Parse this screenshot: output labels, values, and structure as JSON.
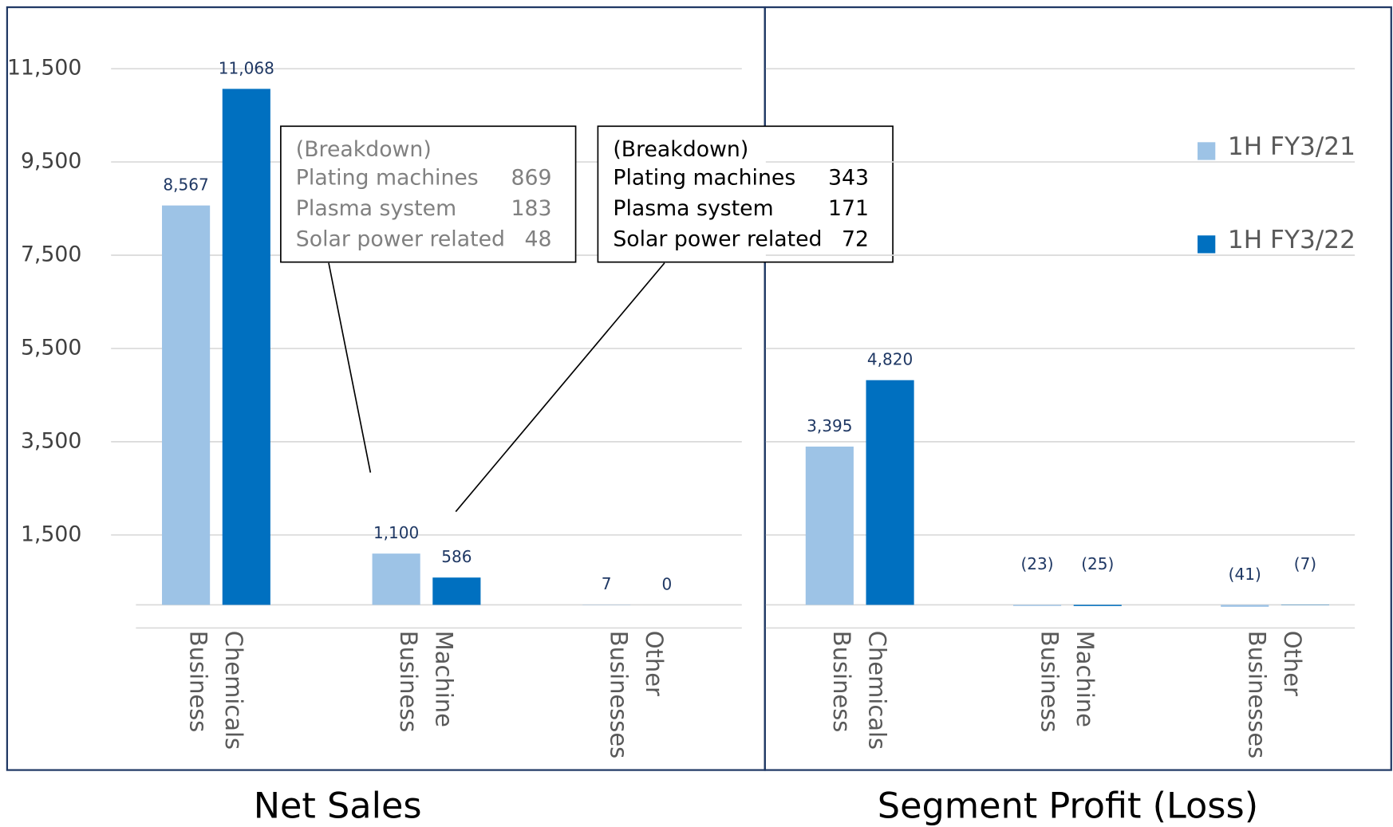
{
  "chart_data": [
    {
      "type": "bar",
      "title": "Net Sales",
      "categories": [
        "Chemicals Business",
        "Machine Business",
        "Other Businesses"
      ],
      "series": [
        {
          "name": "1H FY3/21",
          "color": "#9dc3e6",
          "values": [
            8567,
            1100,
            7
          ],
          "value_labels": [
            "8,567",
            "1,100",
            "7"
          ]
        },
        {
          "name": "1H FY3/22",
          "color": "#0070c0",
          "values": [
            11068,
            586,
            0
          ],
          "value_labels": [
            "11,068",
            "586",
            "0"
          ]
        }
      ],
      "ylim": [
        0,
        12000
      ],
      "yticks": [
        {
          "value": 1500,
          "label": "1,500"
        },
        {
          "value": 3500,
          "label": "3,500"
        },
        {
          "value": 5500,
          "label": "5,500"
        },
        {
          "value": 7500,
          "label": "7,500"
        },
        {
          "value": 9500,
          "label": "9,500"
        },
        {
          "value": 11500,
          "label": "11,500"
        }
      ],
      "grid": true,
      "annotations": [
        {
          "title": "(Breakdown)",
          "color": "#808080",
          "items": [
            {
              "label": "Plating machines",
              "value": 869
            },
            {
              "label": "Plasma system",
              "value": 183
            },
            {
              "label": "Solar power related",
              "value": 48
            }
          ]
        },
        {
          "title": "(Breakdown)",
          "color": "#000000",
          "items": [
            {
              "label": "Plating machines",
              "value": 343
            },
            {
              "label": "Plasma system",
              "value": 171
            },
            {
              "label": "Solar power related",
              "value": 72
            }
          ]
        }
      ]
    },
    {
      "type": "bar",
      "title": "Segment Profit (Loss)",
      "categories": [
        "Chemicals Business",
        "Machine Business",
        "Other Businesses"
      ],
      "series": [
        {
          "name": "1H FY3/21",
          "color": "#9dc3e6",
          "values": [
            3395,
            -23,
            -41
          ],
          "value_labels": [
            "3,395",
            "(23)",
            "(41)"
          ]
        },
        {
          "name": "1H FY3/22",
          "color": "#0070c0",
          "values": [
            4820,
            -25,
            -7
          ],
          "value_labels": [
            "4,820",
            "(25)",
            "(7)"
          ]
        }
      ],
      "ylim": [
        0,
        12000
      ],
      "yticks": [
        1500,
        3500,
        5500,
        7500,
        9500,
        11500
      ],
      "ytick_labels": false,
      "grid": true,
      "legend": "right"
    }
  ]
}
